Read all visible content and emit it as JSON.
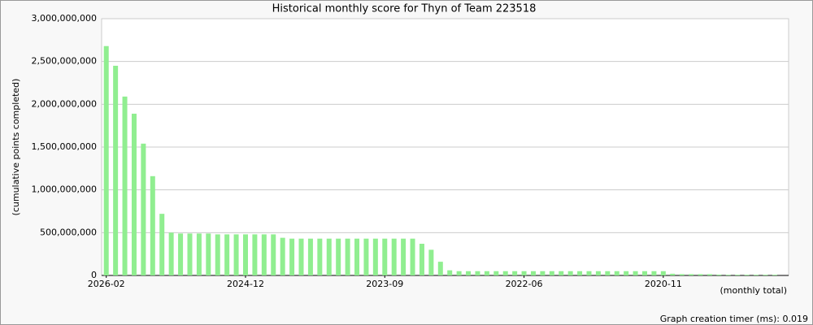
{
  "chart_data": {
    "type": "bar",
    "title": "Historical monthly score for Thyn of Team 223518",
    "y_label": "(cumulative points completed)",
    "x_label": "(monthly total)",
    "footer": "Graph creation timer (ms): 0.019",
    "color": "#90ee90",
    "grid": true,
    "categories": [
      "2026-02",
      null,
      null,
      null,
      null,
      null,
      null,
      null,
      null,
      null,
      null,
      null,
      null,
      null,
      null,
      "2024-12",
      null,
      null,
      null,
      null,
      null,
      null,
      null,
      null,
      null,
      null,
      null,
      null,
      null,
      null,
      "2023-09",
      null,
      null,
      null,
      null,
      null,
      null,
      null,
      null,
      null,
      null,
      null,
      null,
      null,
      null,
      "2022-06",
      null,
      null,
      null,
      null,
      null,
      null,
      null,
      null,
      null,
      null,
      null,
      null,
      null,
      null,
      "2020-11",
      null,
      null,
      null,
      null,
      null,
      null,
      null,
      null,
      null,
      null,
      null,
      null,
      null
    ],
    "values": [
      2680000000,
      2450000000,
      2090000000,
      1890000000,
      1540000000,
      1160000000,
      720000000,
      500000000,
      490000000,
      490000000,
      490000000,
      490000000,
      480000000,
      480000000,
      480000000,
      480000000,
      480000000,
      480000000,
      480000000,
      440000000,
      430000000,
      430000000,
      430000000,
      430000000,
      430000000,
      430000000,
      430000000,
      430000000,
      430000000,
      430000000,
      430000000,
      430000000,
      430000000,
      430000000,
      370000000,
      300000000,
      160000000,
      60000000,
      50000000,
      50000000,
      50000000,
      50000000,
      50000000,
      50000000,
      50000000,
      50000000,
      50000000,
      50000000,
      50000000,
      50000000,
      50000000,
      50000000,
      50000000,
      50000000,
      50000000,
      50000000,
      50000000,
      50000000,
      50000000,
      50000000,
      50000000,
      20000000,
      15000000,
      15000000,
      15000000,
      15000000,
      10000000,
      8000000,
      8000000,
      8000000,
      8000000,
      8000000,
      8000000,
      0
    ],
    "ylim": [
      0,
      3000000000
    ],
    "yticks": [
      0,
      {
        "value": 500000000,
        "label": "500,000,000"
      },
      {
        "value": 1000000000,
        "label": "1,000,000,000"
      },
      {
        "value": 1500000000,
        "label": "1,500,000,000"
      },
      {
        "value": 2000000000,
        "label": "2,000,000,000"
      },
      {
        "value": 2500000000,
        "label": "2,500,000,000"
      },
      {
        "value": 3000000000,
        "label": "3,000,000,000"
      }
    ]
  }
}
